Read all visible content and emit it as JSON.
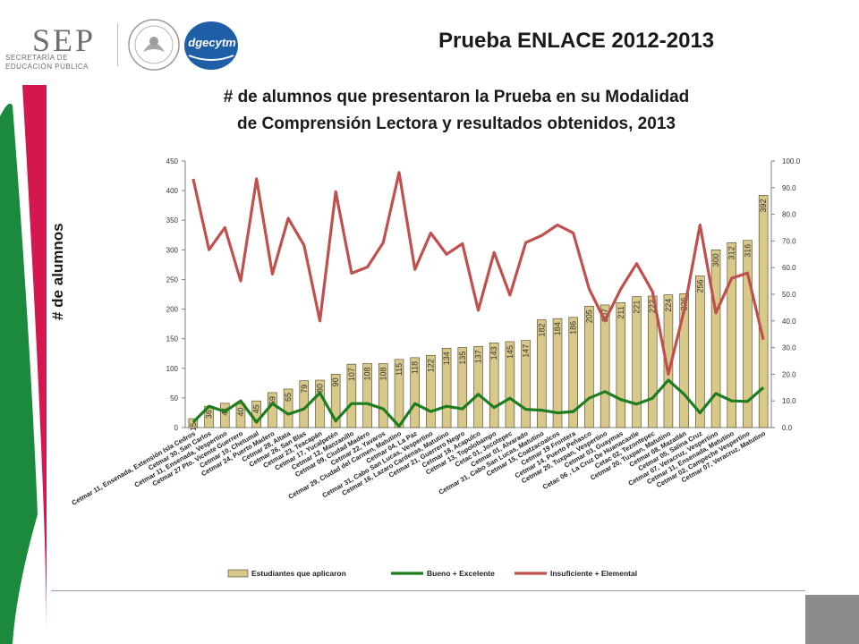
{
  "header": {
    "sep_logo": "SEP",
    "sep_sub1": "SECRETARÍA DE",
    "sep_sub2": "EDUCACIÓN PÚBLICA",
    "dgecytm_logo": "dgecytm",
    "title": "Prueba ENLACE 2012-2013",
    "subtitle_line1": "# de alumnos que presentaron la Prueba en su Modalidad",
    "subtitle_line2": "de Comprensión Lectora y resultados obtenidos, 2013"
  },
  "colors": {
    "bar_fill": "#d8c98a",
    "bar_stroke": "#4a4020",
    "good_line": "#1e7d1e",
    "insufficient_line": "#c0504d",
    "deco_red": "#d4174f",
    "deco_green": "#1b8a3d"
  },
  "chart_data": {
    "type": "bar",
    "title": "",
    "ylabel": "# de alumnos",
    "ylabel_right": "",
    "ylim": [
      0,
      450
    ],
    "y2lim": [
      0,
      100
    ],
    "y_ticks": [
      "0",
      "50",
      "100",
      "150",
      "200",
      "250",
      "300",
      "350",
      "400",
      "450"
    ],
    "y2_ticks": [
      "0.0",
      "10.0",
      "20.0",
      "30.0",
      "40.0",
      "50.0",
      "60.0",
      "70.0",
      "80.0",
      "90.0",
      "100.0"
    ],
    "legend_position": "bottom",
    "categories": [
      "Cetmar 11, Ensenada, Extensión Isla Cedros",
      "Cetmar 30, San Carlos",
      "Cetmar 11, Ensenada, Vespertino",
      "Cetmar 27 Pto. Vicente Guerrero",
      "Cetmar 10, Chetumal",
      "Cetmar 24, Puerto Madero",
      "Cetmar 28, Altata",
      "Cetmar 26, San Blas",
      "Cetmar 23, Teacapán",
      "Cetmar 17, Yucalpetén",
      "Cetmar 12, Manzanillo",
      "Cetmar 09, Ciudad Madero",
      "Cetmar 22, Yavaros",
      "Cetmar 29, Ciudad del Carmen, Matutino",
      "Cetmar 04, La Paz",
      "Cetmar 31, Cabo San Lucas, Vespertino",
      "Cetmar 16, Lazaro Cardenas, Matutino",
      "Cetmar 21, Guerrero Negro",
      "Cetmar 18, Acapulco",
      "Cetmar 13, Topolobampo",
      "Cetac 01, Jocotepec",
      "Cetmar 01, Alvarado",
      "Cetmar 31, Cabo San Lucas, Matutino",
      "Cetmar 15, Coatzacoalcos",
      "Cetmar 19 Frontera",
      "Cetmar 14, Puerto Peñasco",
      "Cetmar 20, Tuxpan, Vespertino",
      "Cetmar 03, Guaymas",
      "Cetac 06 , La Cruz De Huanacaxtle",
      "Cetac 02, Tezontepec",
      "Cetmar 20, Tuxpan, Matutino",
      "Cetmar 08, Mazatlán",
      "Cetmar 05, Salina Cruz",
      "Cetmar 07, Veracruz, Vespertino",
      "Cetmar 11, Ensenada, Matutino",
      "Cetmar 02, Campeche Vespertino",
      "Cetmar 07, Veracruz, Matutino"
    ],
    "series": [
      {
        "name": "Estudiantes que aplicaron",
        "type": "bar",
        "axis": "left",
        "values": [
          15,
          36,
          41,
          40,
          45,
          59,
          65,
          79,
          80,
          90,
          107,
          108,
          108,
          115,
          118,
          122,
          134,
          135,
          137,
          143,
          145,
          147,
          182,
          184,
          186,
          205,
          207,
          211,
          221,
          222,
          224,
          226,
          256,
          300,
          312,
          316,
          392
        ],
        "labels": [
          "15",
          "36",
          "41",
          "40",
          "45",
          "59",
          "65",
          "79",
          "80",
          "90",
          "107",
          "108",
          "108",
          "115",
          "118",
          "122",
          "134",
          "135",
          "137",
          "143",
          "145",
          "147",
          "182",
          "184",
          "186",
          "205",
          "207",
          "211",
          "221",
          "222",
          "224",
          "226",
          "256",
          "300",
          "312",
          "316",
          "392"
        ]
      },
      {
        "name": "Bueno + Excelente",
        "type": "line",
        "axis": "right",
        "values": [
          2.0,
          8.0,
          6.0,
          10.0,
          2.0,
          9.0,
          5.0,
          7.0,
          13.0,
          2.5,
          9.0,
          9.0,
          7.0,
          0.5,
          9.0,
          6.0,
          8.0,
          7.0,
          12.5,
          7.5,
          11.0,
          6.8,
          6.5,
          5.5,
          6.0,
          11.0,
          13.5,
          10.5,
          8.8,
          11.0,
          17.8,
          12.5,
          5.5,
          12.8,
          10.0,
          9.8,
          15.0
        ]
      },
      {
        "name": "Insuficiente + Elemental",
        "type": "line",
        "axis": "right",
        "values": [
          93.3,
          66.7,
          75.0,
          55.0,
          93.3,
          57.6,
          78.5,
          68.4,
          40.0,
          88.5,
          57.9,
          60.2,
          69.4,
          95.7,
          59.3,
          73.0,
          65.0,
          69.0,
          44.0,
          65.7,
          49.7,
          69.4,
          72.0,
          76.0,
          73.0,
          52.0,
          40.0,
          52.0,
          61.5,
          51.0,
          20.0,
          44.0,
          76.0,
          43.0,
          56.0,
          58.0,
          33.0
        ]
      }
    ]
  }
}
